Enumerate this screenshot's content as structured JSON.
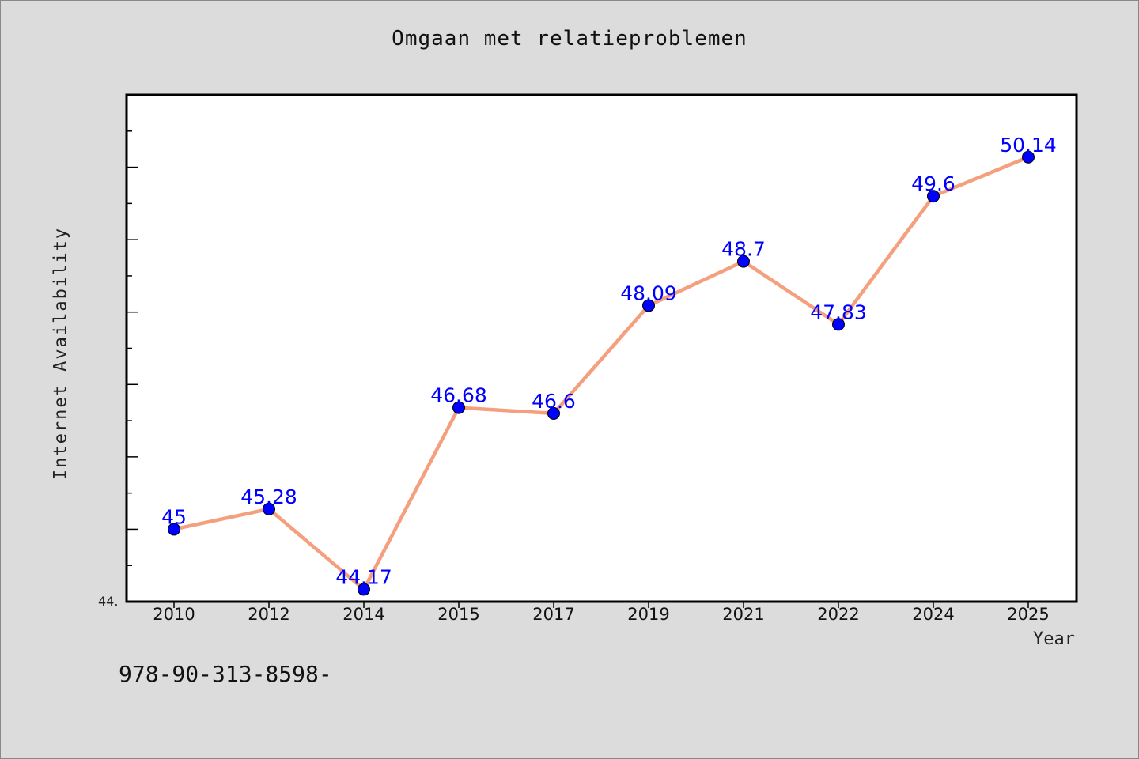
{
  "chart_data": {
    "type": "line",
    "title": "Omgaan met relatieproblemen",
    "xlabel": "Year",
    "ylabel": "Internet Availability",
    "categories": [
      "2010",
      "2012",
      "2014",
      "2015",
      "2017",
      "2019",
      "2021",
      "2022",
      "2024",
      "2025"
    ],
    "values": [
      45,
      45.28,
      44.17,
      46.68,
      46.6,
      48.09,
      48.7,
      47.83,
      49.6,
      50.14
    ],
    "data_labels": [
      "45",
      "45.28",
      "44.17",
      "46.68",
      "46.6",
      "48.09",
      "48.7",
      "47.83",
      "49.6",
      "50.14"
    ],
    "ylim": [
      44.0,
      51.0
    ],
    "y_tick_label": "44.",
    "grid": false,
    "legend": "none",
    "line_color": "#f4a07e",
    "marker_color": "#0000ff",
    "label_color": "#0000ff"
  },
  "footer_text": "978-90-313-8598-"
}
